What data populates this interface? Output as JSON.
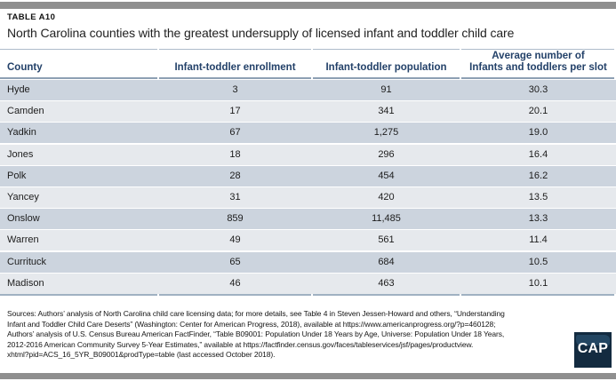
{
  "header": {
    "kicker": "TABLE A10",
    "title": "North Carolina counties with the greatest undersupply of licensed infant and toddler child care"
  },
  "columns_display": [
    {
      "label": "County"
    },
    {
      "label": "Infant-toddler enrollment"
    },
    {
      "label": "Infant-toddler population"
    },
    {
      "label": "Average number of",
      "label2": "Infants and toddlers per slot"
    }
  ],
  "chart_data": {
    "type": "table",
    "title": "North Carolina counties with the greatest undersupply of licensed infant and toddler child care",
    "columns": [
      "County",
      "Infant-toddler enrollment",
      "Infant-toddler population",
      "Average number of infants and toddlers per slot"
    ],
    "rows": [
      [
        "Hyde",
        "3",
        "91",
        "30.3"
      ],
      [
        "Camden",
        "17",
        "341",
        "20.1"
      ],
      [
        "Yadkin",
        "67",
        "1,275",
        "19.0"
      ],
      [
        "Jones",
        "18",
        "296",
        "16.4"
      ],
      [
        "Polk",
        "28",
        "454",
        "16.2"
      ],
      [
        "Yancey",
        "31",
        "420",
        "13.5"
      ],
      [
        "Onslow",
        "859",
        "11,485",
        "13.3"
      ],
      [
        "Warren",
        "49",
        "561",
        "11.4"
      ],
      [
        "Currituck",
        "65",
        "684",
        "10.5"
      ],
      [
        "Madison",
        "46",
        "463",
        "10.1"
      ]
    ]
  },
  "footer": {
    "sources_lines": [
      "Sources: Authors’ analysis of North Carolina child care licensing data; for more details, see Table 4 in Steven Jessen-Howard and others, “Understanding",
      "Infant and Toddler Child Care Deserts” (Washington: Center for American Progress, 2018), available at https://www.americanprogress.org/?p=460128;",
      "Authors’ analysis of U.S. Census Bureau American FactFinder, “Table B09001: Population Under 18 Years by Age, Universe: Population Under 18 Years,",
      "2012-2016 American Community Survey 5-Year Estimates,” available at https://factfinder.census.gov/faces/tableservices/jsf/pages/productview.",
      "xhtml?pid=ACS_16_5YR_B09001&prodType=table (last accessed October 2018)."
    ],
    "logo_text": "CAP"
  },
  "colors": {
    "accent_navy": "#234169",
    "row_dark": "#ccd4de",
    "row_light": "#e6e9ed",
    "rule_blue_gray": "#8da0b3",
    "bar_gray": "#8f8f8f",
    "logo_navy": "#132b40"
  }
}
